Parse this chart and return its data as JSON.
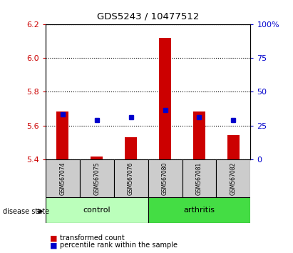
{
  "title": "GDS5243 / 10477512",
  "samples": [
    "GSM567074",
    "GSM567075",
    "GSM567076",
    "GSM567080",
    "GSM567081",
    "GSM567082"
  ],
  "bar_base": 5.4,
  "bar_tops": [
    5.685,
    5.415,
    5.53,
    6.12,
    5.685,
    5.545
  ],
  "blue_values": [
    5.668,
    5.632,
    5.648,
    5.693,
    5.648,
    5.632
  ],
  "ylim": [
    5.4,
    6.2
  ],
  "y_ticks": [
    5.4,
    5.6,
    5.8,
    6.0,
    6.2
  ],
  "right_yticks": [
    0,
    25,
    50,
    75,
    100
  ],
  "right_ylim": [
    0,
    100
  ],
  "bar_color": "#CC0000",
  "blue_color": "#0000CC",
  "label_color_red": "#CC0000",
  "label_color_blue": "#0000CC",
  "sample_area_color": "#CCCCCC",
  "ctrl_color": "#BBFFBB",
  "arth_color": "#44DD44",
  "disease_state_label": "disease state",
  "legend_red_label": "transformed count",
  "legend_blue_label": "percentile rank within the sample"
}
